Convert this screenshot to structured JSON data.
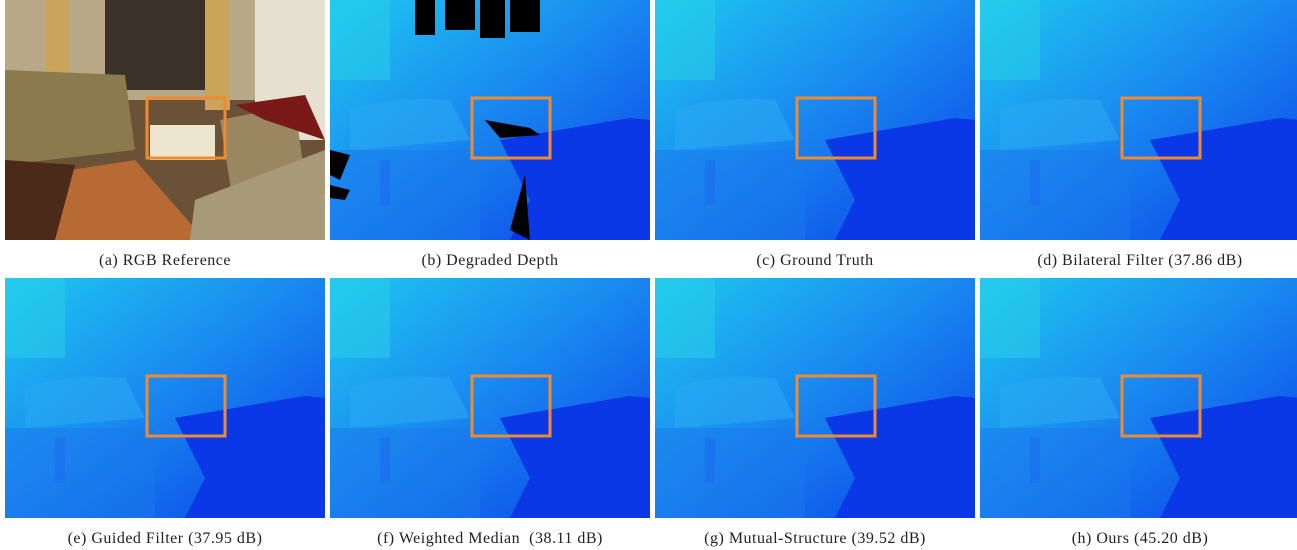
{
  "figure": {
    "panels": [
      {
        "caption": "(a) RGB Reference",
        "kind": "rgb"
      },
      {
        "caption": "(b) Degraded Depth",
        "kind": "degraded"
      },
      {
        "caption": "(c) Ground Truth",
        "kind": "depth"
      },
      {
        "caption": "(d) Bilateral Filter (37.86 dB)",
        "kind": "depth"
      },
      {
        "caption": "(e) Guided Filter (37.95 dB)",
        "kind": "depth"
      },
      {
        "caption": "(f) Weighted Median  (38.11 dB)",
        "kind": "depth"
      },
      {
        "caption": "(g) Mutual-Structure (39.52 dB)",
        "kind": "depth"
      },
      {
        "caption": "(h) Ours (45.20 dB)",
        "kind": "depth"
      }
    ]
  }
}
